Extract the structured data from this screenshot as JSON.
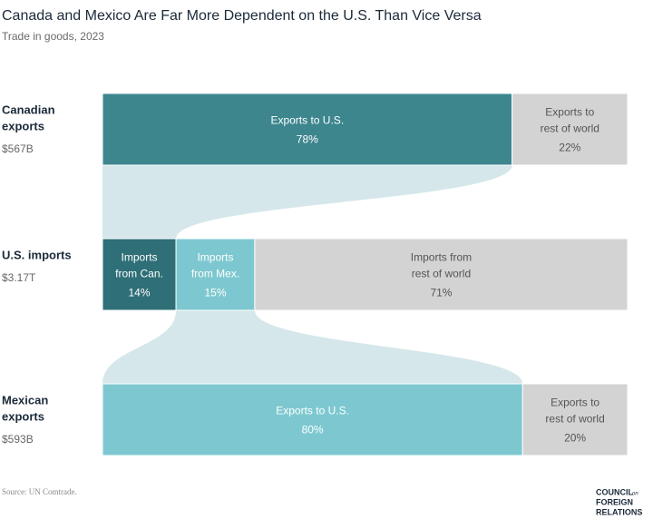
{
  "chart_data": {
    "type": "flow",
    "title": "Canada and Mexico Are Far More Dependent on the U.S. Than Vice Versa",
    "subtitle": "Trade in goods, 2023",
    "xlim": [
      0,
      100
    ],
    "flow_color": "#d5e7ea",
    "rows": [
      {
        "label": [
          "Canadian",
          "exports"
        ],
        "total": "$567B",
        "segments": [
          {
            "name": [
              "Exports to U.S."
            ],
            "value": 78,
            "value_label": "78%",
            "color": "#3d868e"
          },
          {
            "name": [
              "Exports to",
              "rest of world"
            ],
            "value": 22,
            "value_label": "22%",
            "color": "#d3d3d3"
          }
        ]
      },
      {
        "label": [
          "U.S. imports"
        ],
        "total": "$3.17T",
        "segments": [
          {
            "name": [
              "Imports",
              "from Can."
            ],
            "value": 14,
            "value_label": "14%",
            "color": "#2f6f77"
          },
          {
            "name": [
              "Imports",
              "from Mex."
            ],
            "value": 15,
            "value_label": "15%",
            "color": "#7dc8d0"
          },
          {
            "name": [
              "Imports from",
              "rest of world"
            ],
            "value": 71,
            "value_label": "71%",
            "color": "#d3d3d3"
          }
        ]
      },
      {
        "label": [
          "Mexican",
          "exports"
        ],
        "total": "$593B",
        "segments": [
          {
            "name": [
              "Exports to U.S."
            ],
            "value": 80,
            "value_label": "80%",
            "color": "#7dc8d0"
          },
          {
            "name": [
              "Exports to",
              "rest of world"
            ],
            "value": 20,
            "value_label": "20%",
            "color": "#d3d3d3"
          }
        ]
      }
    ],
    "source": "Source: UN Comtrade.",
    "logo": {
      "lines": [
        "COUNCIL",
        "FOREIGN",
        "RELATIONS"
      ],
      "small": "on"
    }
  }
}
